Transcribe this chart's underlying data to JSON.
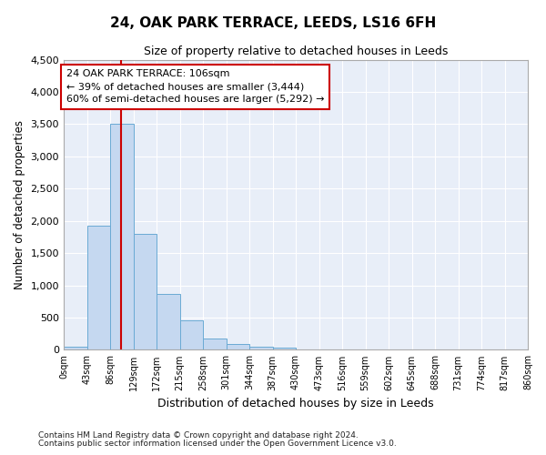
{
  "title": "24, OAK PARK TERRACE, LEEDS, LS16 6FH",
  "subtitle": "Size of property relative to detached houses in Leeds",
  "xlabel": "Distribution of detached houses by size in Leeds",
  "ylabel": "Number of detached properties",
  "bar_color": "#c5d8f0",
  "bar_edge_color": "#6aaad4",
  "bg_color": "#e8eef8",
  "grid_color": "#ffffff",
  "bin_edges": [
    0,
    43,
    86,
    129,
    172,
    215,
    258,
    301,
    344,
    387,
    430,
    473,
    516,
    559,
    602,
    645,
    688,
    731,
    774,
    817,
    860
  ],
  "bin_labels": [
    "0sqm",
    "43sqm",
    "86sqm",
    "129sqm",
    "172sqm",
    "215sqm",
    "258sqm",
    "301sqm",
    "344sqm",
    "387sqm",
    "430sqm",
    "473sqm",
    "516sqm",
    "559sqm",
    "602sqm",
    "645sqm",
    "688sqm",
    "731sqm",
    "774sqm",
    "817sqm",
    "860sqm"
  ],
  "bar_heights": [
    45,
    1920,
    3500,
    1800,
    860,
    460,
    175,
    90,
    55,
    40,
    10,
    0,
    0,
    0,
    0,
    0,
    0,
    0,
    0,
    0
  ],
  "vline_x": 106,
  "vline_color": "#cc0000",
  "annotation_line1": "24 OAK PARK TERRACE: 106sqm",
  "annotation_line2": "← 39% of detached houses are smaller (3,444)",
  "annotation_line3": "60% of semi-detached houses are larger (5,292) →",
  "annotation_box_color": "#cc0000",
  "ylim": [
    0,
    4500
  ],
  "yticks": [
    0,
    500,
    1000,
    1500,
    2000,
    2500,
    3000,
    3500,
    4000,
    4500
  ],
  "footnote1": "Contains HM Land Registry data © Crown copyright and database right 2024.",
  "footnote2": "Contains public sector information licensed under the Open Government Licence v3.0.",
  "figsize": [
    6.0,
    5.0
  ],
  "dpi": 100
}
